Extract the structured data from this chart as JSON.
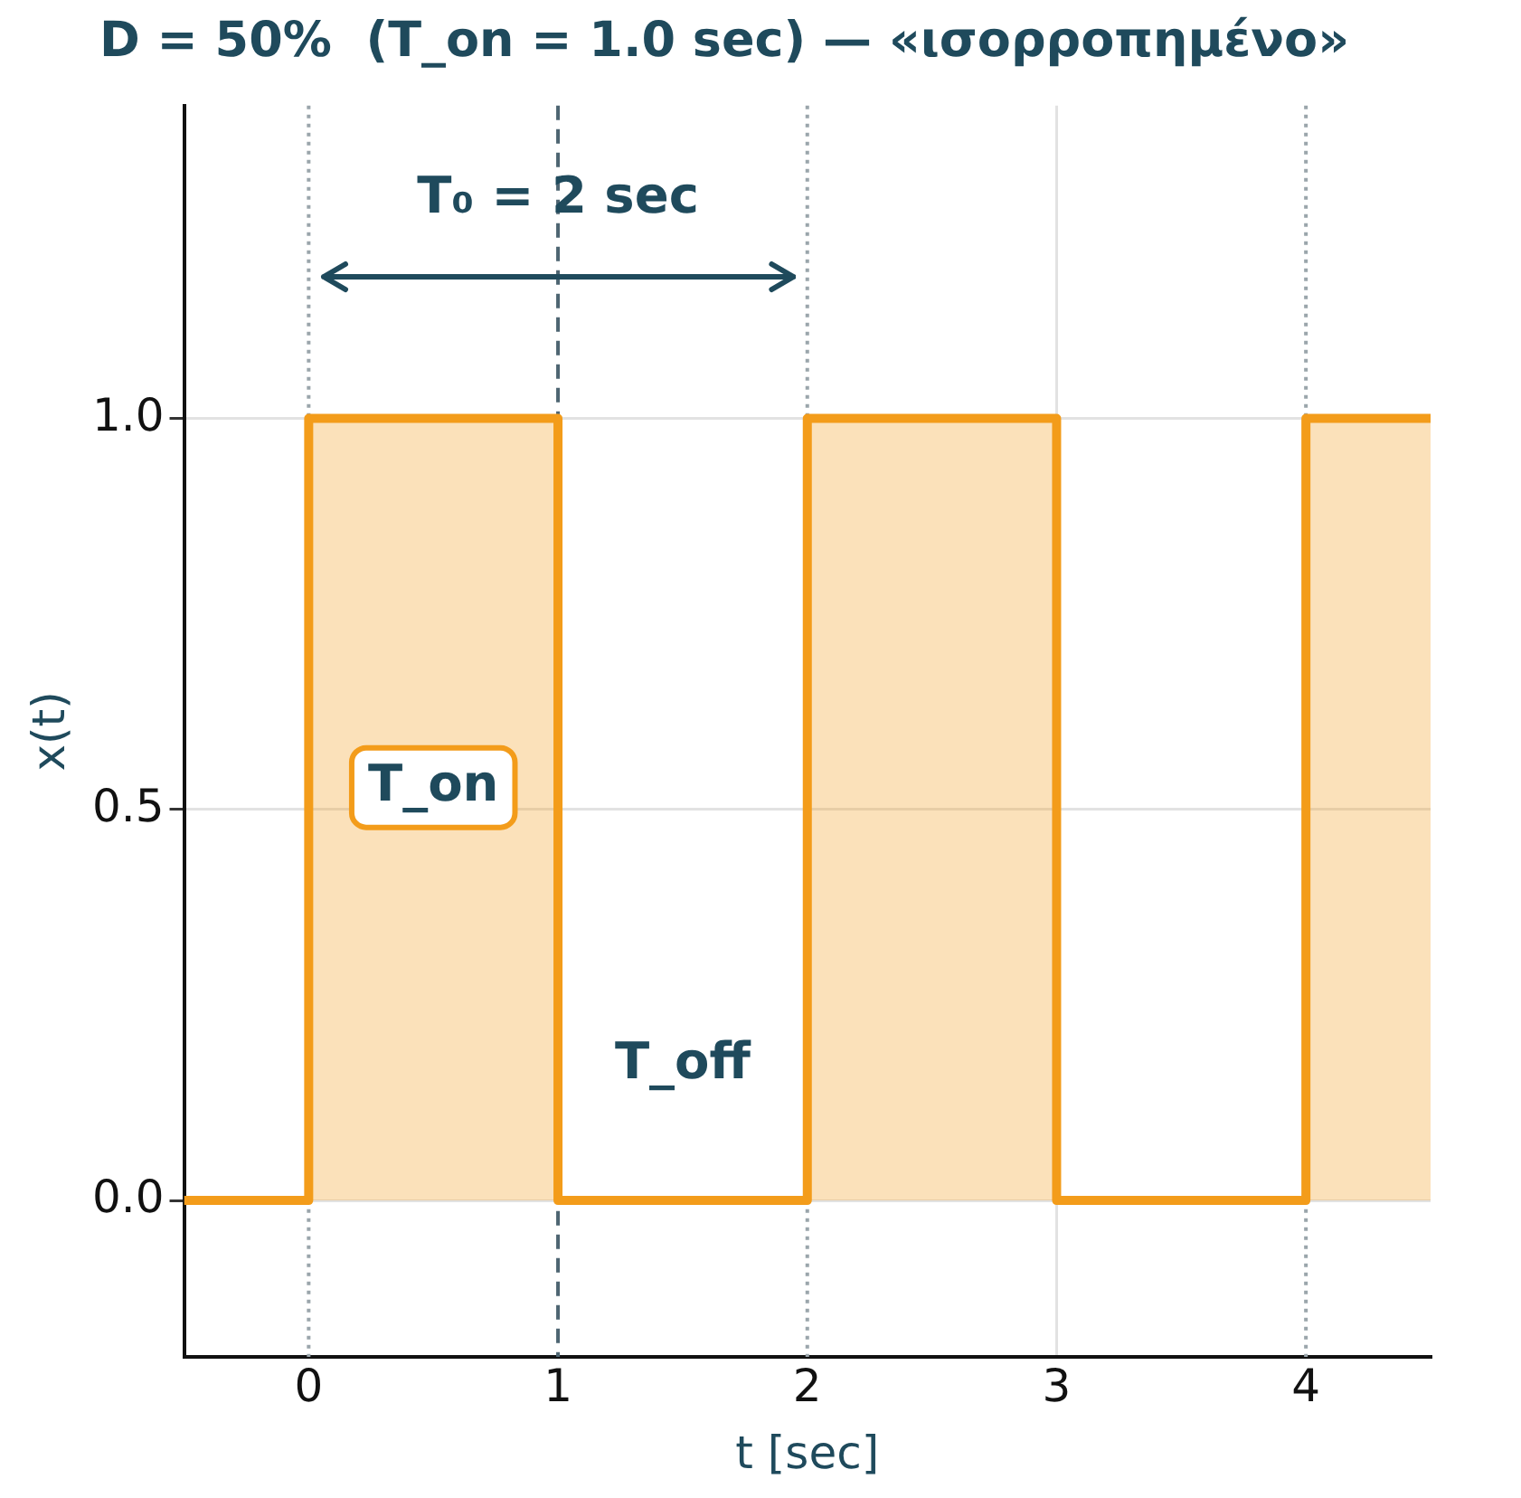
{
  "chart_data": {
    "type": "step",
    "title": "D = 50%  (T_on = 1.0 sec) — «ισορροπημένο»",
    "xlabel": "t [sec]",
    "ylabel": "x(t)",
    "x": [
      -0.5,
      0,
      1,
      2,
      3,
      4,
      4.5
    ],
    "series": [
      {
        "color": "#f39c1a",
        "values": [
          0,
          1,
          0,
          1,
          0,
          1,
          1
        ]
      }
    ],
    "xlim": [
      -0.5,
      4.5
    ],
    "xticks": [
      0,
      1,
      2,
      3,
      4
    ],
    "ylim": [
      -0.2,
      1.4
    ],
    "yticks": [
      {
        "value": 0,
        "label": "0.0"
      },
      {
        "value": 0.5,
        "label": "0.5"
      },
      {
        "value": 1,
        "label": "1.0"
      }
    ],
    "grid": true,
    "legend": false,
    "ref_lines": [
      {
        "axis": "x",
        "value": 0,
        "color": "#9aa5ab",
        "line_style": "dotted"
      },
      {
        "axis": "x",
        "value": 1,
        "color": "#4e6572",
        "line_style": "dashed"
      },
      {
        "axis": "x",
        "value": 2,
        "color": "#9aa5ab",
        "line_style": "dotted"
      },
      {
        "axis": "x",
        "value": 4,
        "color": "#9aa5ab",
        "line_style": "dotted"
      }
    ],
    "annotations": [
      "T₀ = 2 sec",
      "T_on",
      "T_off"
    ]
  }
}
